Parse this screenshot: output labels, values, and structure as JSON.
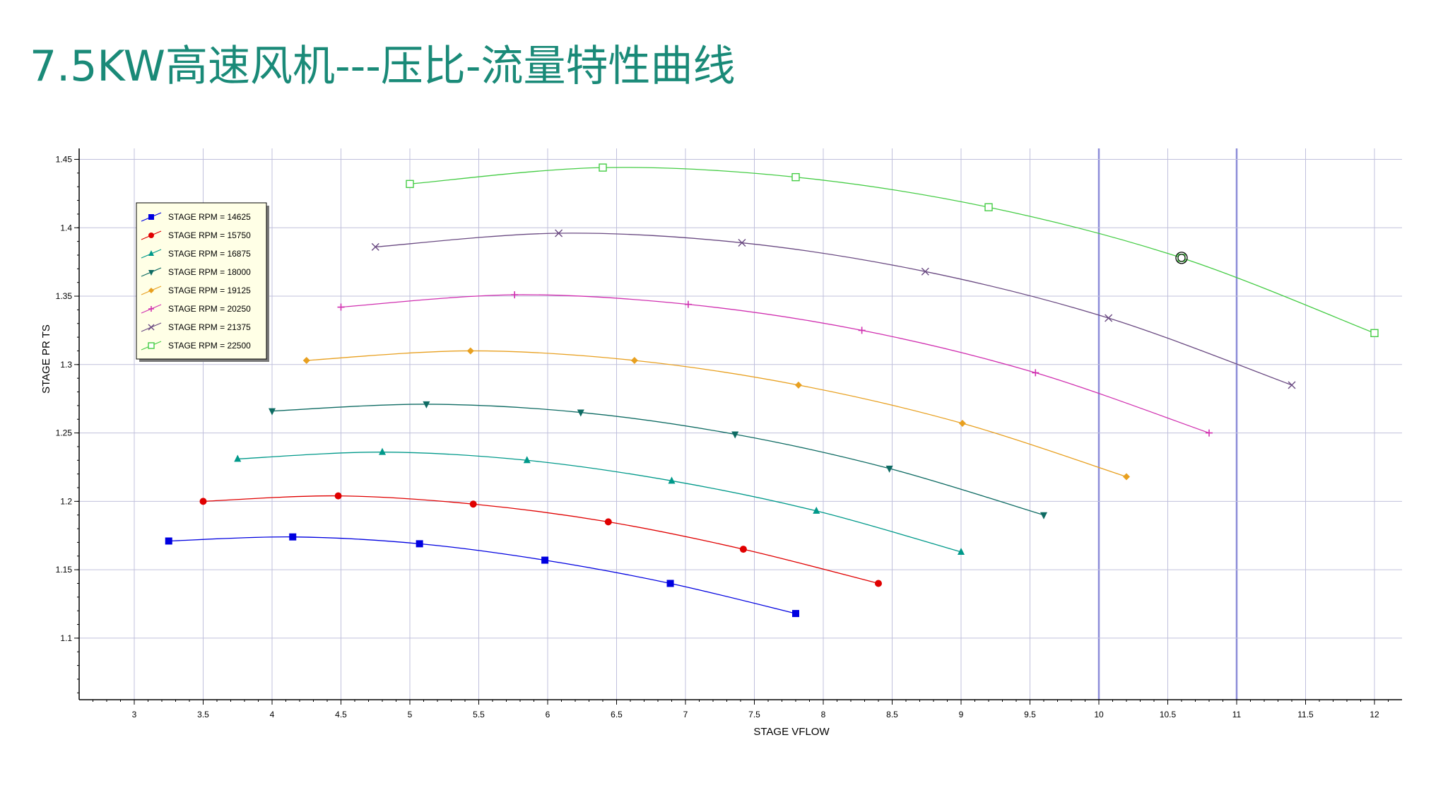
{
  "page": {
    "title": "7.5KW高速风机---压比-流量特性曲线"
  },
  "colors": {
    "title": "#1a8a78",
    "grid": "#c0c0dc",
    "grid_strong": "#8c8cd8",
    "legend_bg": "#ffffe6"
  },
  "chart_data": {
    "type": "line",
    "title": "",
    "xlabel": "STAGE VFLOW",
    "ylabel": "STAGE PR TS",
    "xlim": [
      2.6,
      12.2
    ],
    "ylim": [
      1.055,
      1.458
    ],
    "x_ticks": [
      "3",
      "3.5",
      "4",
      "4.5",
      "5",
      "5.5",
      "6",
      "6.5",
      "7",
      "7.5",
      "8",
      "8.5",
      "9",
      "9.5",
      "10",
      "10.5",
      "11",
      "11.5",
      "12"
    ],
    "y_ticks": [
      "1.1",
      "1.15",
      "1.2",
      "1.25",
      "1.3",
      "1.35",
      "1.4",
      "1.45"
    ],
    "grid": true,
    "legend_position": "top-left",
    "highlighted_point": {
      "x": 10.6,
      "y": 1.378
    },
    "series": [
      {
        "name": "STAGE RPM = 14625",
        "color": "#0000e0",
        "marker": "square",
        "x": [
          3.25,
          4.15,
          5.07,
          5.98,
          6.89,
          7.8
        ],
        "y": [
          1.171,
          1.174,
          1.169,
          1.157,
          1.14,
          1.118
        ]
      },
      {
        "name": "STAGE RPM = 15750",
        "color": "#e00000",
        "marker": "circle",
        "x": [
          3.5,
          4.48,
          5.46,
          6.44,
          7.42,
          8.4
        ],
        "y": [
          1.2,
          1.204,
          1.198,
          1.185,
          1.165,
          1.14
        ]
      },
      {
        "name": "STAGE RPM = 16875",
        "color": "#00998a",
        "marker": "triangle-up",
        "x": [
          3.75,
          4.8,
          5.85,
          6.9,
          7.95,
          9.0
        ],
        "y": [
          1.231,
          1.236,
          1.23,
          1.215,
          1.193,
          1.163
        ]
      },
      {
        "name": "STAGE RPM = 18000",
        "color": "#0e6b63",
        "marker": "triangle-down",
        "x": [
          4.0,
          5.12,
          6.24,
          7.36,
          8.48,
          9.6
        ],
        "y": [
          1.266,
          1.271,
          1.265,
          1.249,
          1.224,
          1.19
        ]
      },
      {
        "name": "STAGE RPM = 19125",
        "color": "#e8a020",
        "marker": "diamond",
        "x": [
          4.25,
          5.44,
          6.63,
          7.82,
          9.01,
          10.2
        ],
        "y": [
          1.303,
          1.31,
          1.303,
          1.285,
          1.257,
          1.218
        ]
      },
      {
        "name": "STAGE RPM = 20250",
        "color": "#d030b0",
        "marker": "plus",
        "x": [
          4.5,
          5.76,
          7.02,
          8.28,
          9.54,
          10.8
        ],
        "y": [
          1.342,
          1.351,
          1.344,
          1.325,
          1.294,
          1.25
        ]
      },
      {
        "name": "STAGE RPM = 21375",
        "color": "#6a4a82",
        "marker": "x",
        "x": [
          4.75,
          6.08,
          7.41,
          8.74,
          10.07,
          11.4
        ],
        "y": [
          1.386,
          1.396,
          1.389,
          1.368,
          1.334,
          1.285
        ]
      },
      {
        "name": "STAGE RPM = 22500",
        "color": "#44cc44",
        "marker": "open-square",
        "x": [
          5.0,
          6.4,
          7.8,
          9.2,
          10.6,
          12.0
        ],
        "y": [
          1.432,
          1.444,
          1.437,
          1.415,
          1.378,
          1.323
        ]
      }
    ]
  }
}
